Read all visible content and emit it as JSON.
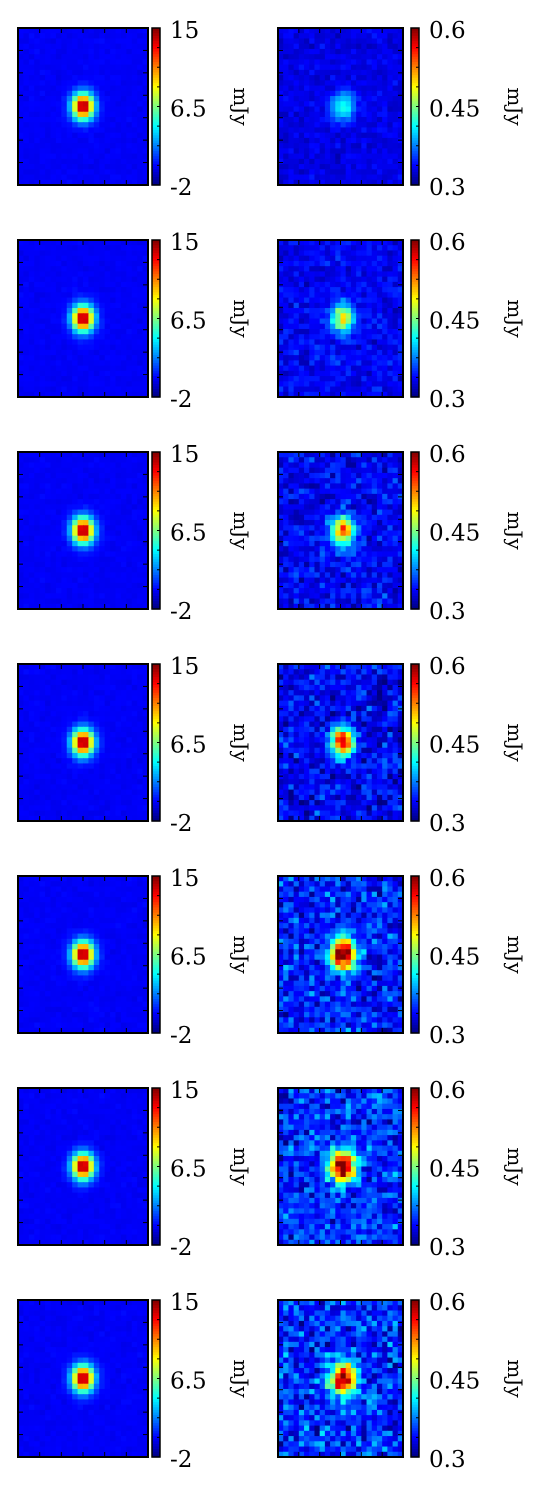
{
  "chart_data": [
    {
      "type": "heatmap",
      "row": 1,
      "panel": "left",
      "cbar_ticks": [
        "15",
        "6.5",
        "-2"
      ],
      "unit": "mJy",
      "vmin": -2,
      "vmax": 15,
      "peak": 15,
      "peak_width": 1.4,
      "background": 0,
      "noise": 0.1
    },
    {
      "type": "heatmap",
      "row": 1,
      "panel": "right",
      "cbar_ticks": [
        "0.6",
        "0.45",
        "0.3"
      ],
      "unit": "mJy",
      "vmin": 0.3,
      "vmax": 0.6,
      "peak": 0.42,
      "peak_width": 1.6,
      "background": 0.33,
      "noise": 0.006
    },
    {
      "type": "heatmap",
      "row": 2,
      "panel": "left",
      "cbar_ticks": [
        "15",
        "6.5",
        "-2"
      ],
      "unit": "mJy",
      "vmin": -2,
      "vmax": 15,
      "peak": 15,
      "peak_width": 1.4,
      "background": 0,
      "noise": 0.1
    },
    {
      "type": "heatmap",
      "row": 2,
      "panel": "right",
      "cbar_ticks": [
        "0.6",
        "0.45",
        "0.3"
      ],
      "unit": "mJy",
      "vmin": 0.3,
      "vmax": 0.6,
      "peak": 0.5,
      "peak_width": 1.5,
      "background": 0.335,
      "noise": 0.01
    },
    {
      "type": "heatmap",
      "row": 3,
      "panel": "left",
      "cbar_ticks": [
        "15",
        "6.5",
        "-2"
      ],
      "unit": "mJy",
      "vmin": -2,
      "vmax": 15,
      "peak": 15,
      "peak_width": 1.4,
      "background": 0,
      "noise": 0.1
    },
    {
      "type": "heatmap",
      "row": 3,
      "panel": "right",
      "cbar_ticks": [
        "0.6",
        "0.45",
        "0.3"
      ],
      "unit": "mJy",
      "vmin": 0.3,
      "vmax": 0.6,
      "peak": 0.55,
      "peak_width": 1.5,
      "background": 0.335,
      "noise": 0.013
    },
    {
      "type": "heatmap",
      "row": 4,
      "panel": "left",
      "cbar_ticks": [
        "15",
        "6.5",
        "-2"
      ],
      "unit": "mJy",
      "vmin": -2,
      "vmax": 15,
      "peak": 15,
      "peak_width": 1.4,
      "background": 0,
      "noise": 0.1
    },
    {
      "type": "heatmap",
      "row": 4,
      "panel": "right",
      "cbar_ticks": [
        "0.6",
        "0.45",
        "0.3"
      ],
      "unit": "mJy",
      "vmin": 0.3,
      "vmax": 0.6,
      "peak": 0.58,
      "peak_width": 1.5,
      "background": 0.335,
      "noise": 0.016
    },
    {
      "type": "heatmap",
      "row": 5,
      "panel": "left",
      "cbar_ticks": [
        "15",
        "6.5",
        "-2"
      ],
      "unit": "mJy",
      "vmin": -2,
      "vmax": 15,
      "peak": 15,
      "peak_width": 1.4,
      "background": 0,
      "noise": 0.1
    },
    {
      "type": "heatmap",
      "row": 5,
      "panel": "right",
      "cbar_ticks": [
        "0.6",
        "0.45",
        "0.3"
      ],
      "unit": "mJy",
      "vmin": 0.3,
      "vmax": 0.6,
      "peak": 0.62,
      "peak_width": 1.7,
      "background": 0.345,
      "noise": 0.02
    },
    {
      "type": "heatmap",
      "row": 6,
      "panel": "left",
      "cbar_ticks": [
        "15",
        "6.5",
        "-2"
      ],
      "unit": "mJy",
      "vmin": -2,
      "vmax": 15,
      "peak": 15,
      "peak_width": 1.4,
      "background": 0,
      "noise": 0.1
    },
    {
      "type": "heatmap",
      "row": 6,
      "panel": "right",
      "cbar_ticks": [
        "0.6",
        "0.45",
        "0.3"
      ],
      "unit": "mJy",
      "vmin": 0.3,
      "vmax": 0.6,
      "peak": 0.62,
      "peak_width": 1.7,
      "background": 0.35,
      "noise": 0.02
    },
    {
      "type": "heatmap",
      "row": 7,
      "panel": "left",
      "cbar_ticks": [
        "15",
        "6.5",
        "-2"
      ],
      "unit": "mJy",
      "vmin": -2,
      "vmax": 15,
      "peak": 15,
      "peak_width": 1.4,
      "background": 0,
      "noise": 0.1
    },
    {
      "type": "heatmap",
      "row": 7,
      "panel": "right",
      "cbar_ticks": [
        "0.6",
        "0.45",
        "0.3"
      ],
      "unit": "mJy",
      "vmin": 0.3,
      "vmax": 0.6,
      "peak": 0.6,
      "peak_width": 1.7,
      "background": 0.35,
      "noise": 0.022
    }
  ]
}
